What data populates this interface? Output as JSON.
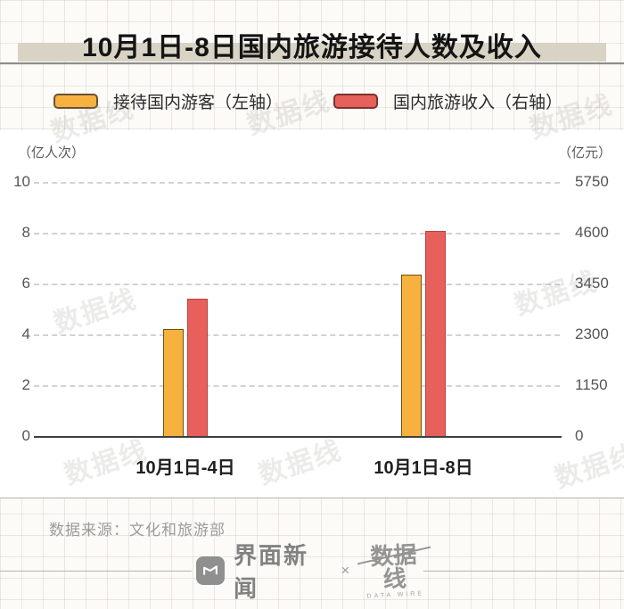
{
  "title": "10月1日-8日国内旅游接待人数及收入",
  "chart_data": {
    "type": "bar",
    "title": "10月1日-8日国内旅游接待人数及收入",
    "categories": [
      "10月1日-4日",
      "10月1日-8日"
    ],
    "series": [
      {
        "name": "接待国内游客（左轴）",
        "axis": "left",
        "unit": "亿人次",
        "values": [
          4.25,
          6.37
        ],
        "color": "#F7B13F",
        "border": "#6b5212"
      },
      {
        "name": "国内旅游收入（右轴）",
        "axis": "right",
        "unit": "亿元",
        "values": [
          3120,
          4665
        ],
        "color": "#E7605B",
        "border": "#b8413d"
      }
    ],
    "left_axis": {
      "label": "（亿人次）",
      "min": 0,
      "max": 10,
      "ticks": [
        "10",
        "8",
        "6",
        "4",
        "2",
        "0"
      ]
    },
    "right_axis": {
      "label": "（亿元）",
      "min": 0,
      "max": 5750,
      "ticks": [
        "5750",
        "4600",
        "3450",
        "2300",
        "1150",
        "0"
      ]
    },
    "grid": "horizontal dashed",
    "legend_position": "top"
  },
  "source": "数据来源：文化和旅游部",
  "footer": {
    "jiemian_label": "界面新闻",
    "multiply_sign": "×",
    "datawire_label": "数据线",
    "datawire_sub": "DATA WIRE"
  },
  "watermark": "数据线",
  "colors": {
    "title_band": "#d9d3c5",
    "visitors_bar": "#F7B13F",
    "revenue_bar": "#E7605B",
    "baseline": "#3f3f3f",
    "gridline": "#d2d2d2"
  }
}
